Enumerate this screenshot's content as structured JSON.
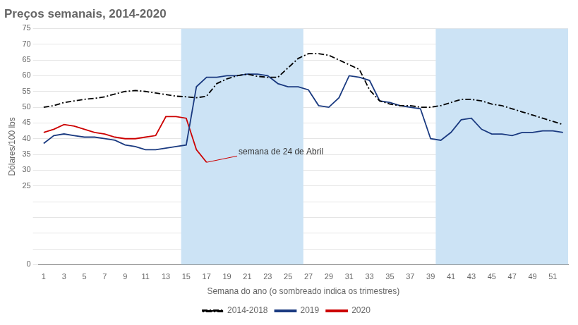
{
  "chart_data": {
    "type": "line",
    "title": "Preços semanais, 2014-2020",
    "x_label": "Semana do ano (o sombreado indica os trimestres)",
    "y_label": "Dólares/100 lbs",
    "x": [
      1,
      2,
      3,
      4,
      5,
      6,
      7,
      8,
      9,
      10,
      11,
      12,
      13,
      14,
      15,
      16,
      17,
      18,
      19,
      20,
      21,
      22,
      23,
      24,
      25,
      26,
      27,
      28,
      29,
      30,
      31,
      32,
      33,
      34,
      35,
      36,
      37,
      38,
      39,
      40,
      41,
      42,
      43,
      44,
      45,
      46,
      47,
      48,
      49,
      50,
      51,
      52
    ],
    "series": [
      {
        "name": "2014-2018",
        "color": "#000000",
        "line_style": "dashdot",
        "values": [
          50.0,
          50.5,
          51.5,
          52.0,
          52.5,
          52.8,
          53.3,
          54.2,
          55.0,
          55.3,
          55.0,
          54.5,
          54.0,
          53.5,
          53.3,
          53.0,
          53.5,
          57.5,
          59.0,
          60.0,
          60.5,
          59.8,
          59.5,
          59.5,
          62.5,
          65.5,
          67.0,
          67.0,
          66.5,
          65.0,
          63.5,
          62.0,
          55.5,
          52.0,
          51.0,
          50.5,
          50.5,
          50.0,
          50.0,
          50.5,
          51.5,
          52.5,
          52.5,
          52.0,
          51.0,
          50.5,
          49.5,
          48.5,
          47.5,
          46.5,
          45.5,
          44.5
        ]
      },
      {
        "name": "2019",
        "color": "#1a3a80",
        "line_style": "solid",
        "values": [
          38.5,
          41.0,
          41.5,
          41.0,
          40.5,
          40.5,
          40.0,
          39.5,
          38.0,
          37.5,
          36.5,
          36.5,
          37.0,
          37.5,
          38.0,
          56.5,
          59.5,
          59.5,
          60.0,
          60.0,
          60.5,
          60.5,
          60.0,
          57.5,
          56.5,
          56.5,
          55.5,
          50.5,
          50.0,
          53.0,
          60.0,
          59.5,
          58.5,
          52.0,
          51.5,
          50.5,
          50.0,
          49.5,
          40.0,
          39.5,
          42.0,
          46.0,
          46.5,
          43.0,
          41.5,
          41.5,
          41.0,
          42.0,
          42.0,
          42.5,
          42.5,
          42.0
        ]
      },
      {
        "name": "2020",
        "color": "#cc0000",
        "line_style": "solid",
        "values": [
          42.0,
          43.0,
          44.5,
          44.0,
          43.0,
          42.0,
          41.5,
          40.5,
          40.0,
          40.0,
          40.5,
          41.0,
          47.0,
          47.0,
          46.5,
          36.5,
          32.5,
          null,
          null,
          null,
          null,
          null,
          null,
          null,
          null,
          null,
          null,
          null,
          null,
          null,
          null,
          null,
          null,
          null,
          null,
          null,
          null,
          null,
          null,
          null,
          null,
          null,
          null,
          null,
          null,
          null,
          null,
          null,
          null,
          null,
          null,
          null
        ]
      }
    ],
    "xlim": [
      0.5,
      52.5
    ],
    "xticks": [
      1,
      3,
      5,
      7,
      9,
      11,
      13,
      15,
      17,
      19,
      21,
      23,
      25,
      27,
      29,
      31,
      33,
      35,
      37,
      39,
      41,
      43,
      45,
      47,
      49,
      51
    ],
    "ylim": [
      0,
      75
    ],
    "yticks": [
      0,
      {
        "value": 5,
        "label": null
      },
      {
        "value": 10,
        "label": null
      },
      {
        "value": 15,
        "label": null
      },
      {
        "value": 20,
        "label": null
      },
      25,
      30,
      35,
      40,
      45,
      50,
      55,
      60,
      65,
      70,
      75
    ],
    "grid": "y",
    "legend": "bottom",
    "shaded_regions": {
      "color": "#cce3f5",
      "ranges": [
        [
          14.5,
          26.5
        ],
        [
          39.5,
          52.5
        ]
      ]
    },
    "annotations": [
      {
        "text": "semana de 24 de Abril",
        "x": 17,
        "y": 32.5,
        "text_x": 20,
        "text_y": 34.5,
        "color": "#cc0000"
      }
    ]
  }
}
